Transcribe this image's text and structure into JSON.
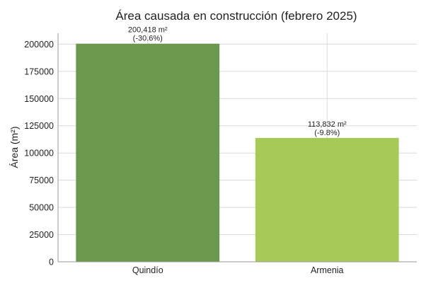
{
  "chart_data": {
    "type": "bar",
    "title": "Área causada en construcción (febrero 2025)",
    "xlabel": "",
    "ylabel": "Área (m²)",
    "categories": [
      "Quindío",
      "Armenia"
    ],
    "values": [
      200418,
      113832
    ],
    "data_labels": [
      [
        "200,418 m²",
        "(-30.6%)"
      ],
      [
        "113,832 m²",
        "(-9.8%)"
      ]
    ],
    "colors": [
      "#6a994e",
      "#a7c957"
    ],
    "ylim": [
      0,
      210000
    ],
    "yticks": [
      0,
      25000,
      50000,
      75000,
      100000,
      125000,
      150000,
      175000,
      200000
    ],
    "grid": true,
    "legend": "none"
  }
}
